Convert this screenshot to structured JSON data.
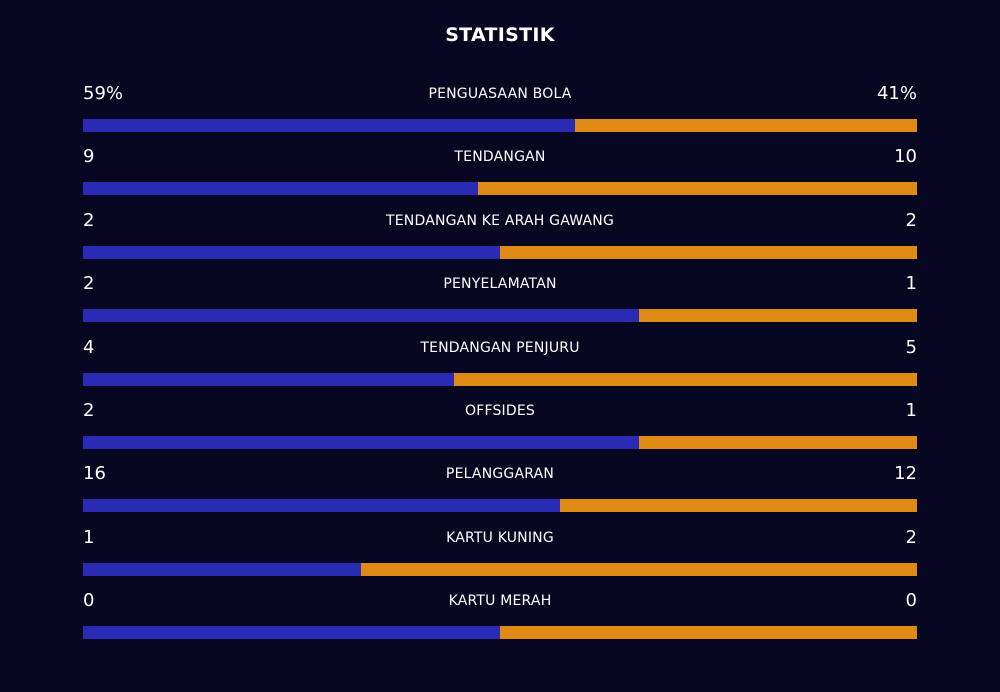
{
  "header": {
    "title": "STATISTIK"
  },
  "colors": {
    "background": "#070722",
    "home": "#2a2bb5",
    "away": "#e08a16"
  },
  "stats": [
    {
      "label": "PENGUASAAN BOLA",
      "home": "59%",
      "away": "41%",
      "home_share": 0.59
    },
    {
      "label": "TENDANGAN",
      "home": "9",
      "away": "10",
      "home_share": 0.4737
    },
    {
      "label": "TENDANGAN KE ARAH GAWANG",
      "home": "2",
      "away": "2",
      "home_share": 0.5
    },
    {
      "label": "PENYELAMATAN",
      "home": "2",
      "away": "1",
      "home_share": 0.6667
    },
    {
      "label": "TENDANGAN PENJURU",
      "home": "4",
      "away": "5",
      "home_share": 0.4444
    },
    {
      "label": "OFFSIDES",
      "home": "2",
      "away": "1",
      "home_share": 0.6667
    },
    {
      "label": "PELANGGARAN",
      "home": "16",
      "away": "12",
      "home_share": 0.5714
    },
    {
      "label": "KARTU KUNING",
      "home": "1",
      "away": "2",
      "home_share": 0.3333
    },
    {
      "label": "KARTU MERAH",
      "home": "0",
      "away": "0",
      "home_share": 0.5
    }
  ]
}
